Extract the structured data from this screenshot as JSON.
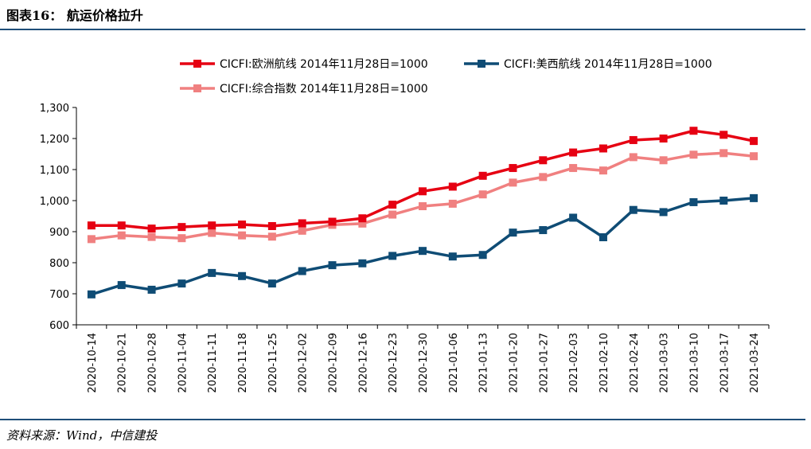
{
  "figure": {
    "title": "图表16：   航运价格拉升",
    "source": "资料来源：Wind，中信建投"
  },
  "chart_data": {
    "type": "line",
    "title": "",
    "xlabel": "",
    "ylabel": "",
    "ylim": [
      600,
      1300
    ],
    "yticks": [
      "600",
      "700",
      "800",
      "900",
      "1,000",
      "1,100",
      "1,200",
      "1,300"
    ],
    "ytick_values": [
      600,
      700,
      800,
      900,
      1000,
      1100,
      1200,
      1300
    ],
    "grid": false,
    "legend_position": "top",
    "x": [
      "2020-10-14",
      "2020-10-21",
      "2020-10-28",
      "2020-11-04",
      "2020-11-11",
      "2020-11-18",
      "2020-11-25",
      "2020-12-02",
      "2020-12-09",
      "2020-12-16",
      "2020-12-23",
      "2020-12-30",
      "2021-01-06",
      "2021-01-13",
      "2021-01-20",
      "2021-01-27",
      "2021-02-03",
      "2021-02-10",
      "2021-02-24",
      "2021-03-03",
      "2021-03-10",
      "2021-03-17",
      "2021-03-24"
    ],
    "series": [
      {
        "name": "CICFI:欧洲航线 2014年11月28日=1000",
        "color": "#e60012",
        "values": [
          920,
          920,
          910,
          915,
          920,
          923,
          918,
          927,
          932,
          943,
          987,
          1030,
          1045,
          1080,
          1105,
          1130,
          1155,
          1168,
          1195,
          1200,
          1225,
          1212,
          1192
        ]
      },
      {
        "name": "CICFI:美西航线 2014年11月28日=1000",
        "color": "#0f4c75",
        "values": [
          698,
          728,
          713,
          733,
          767,
          757,
          733,
          773,
          792,
          798,
          822,
          838,
          820,
          825,
          897,
          905,
          945,
          882,
          970,
          963,
          995,
          1000,
          1008
        ]
      },
      {
        "name": "CICFI:综合指数 2014年11月28日=1000",
        "color": "#f08080",
        "values": [
          876,
          888,
          883,
          879,
          896,
          888,
          884,
          903,
          922,
          926,
          955,
          982,
          990,
          1020,
          1058,
          1076,
          1105,
          1097,
          1140,
          1130,
          1148,
          1153,
          1143
        ]
      }
    ]
  }
}
